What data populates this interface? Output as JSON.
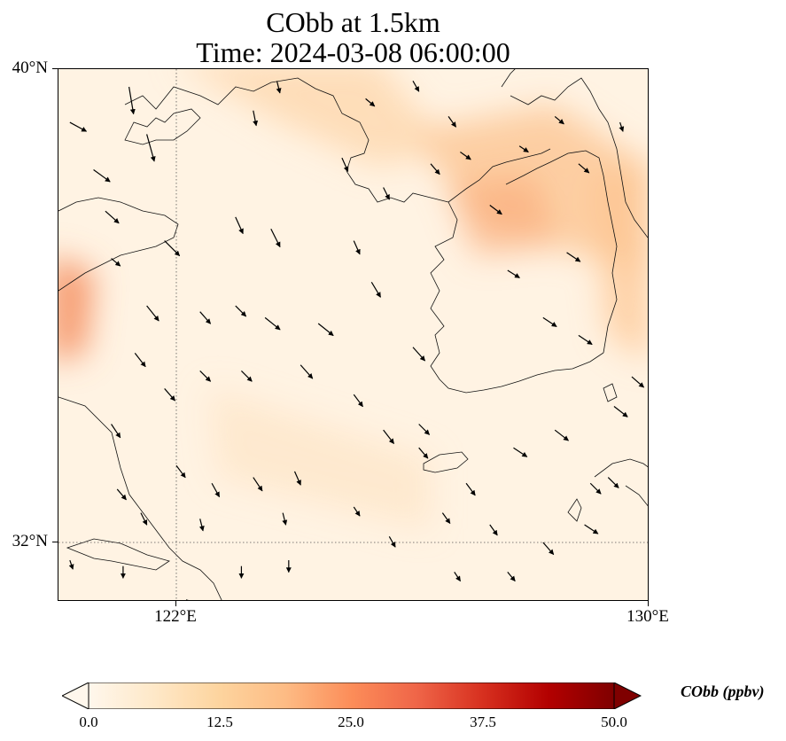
{
  "title": {
    "line1": "CObb at 1.5km",
    "line2": "Time: 2024-03-08 06:00:00"
  },
  "axes": {
    "lat_labels": [
      "40°N",
      "32°N"
    ],
    "lon_labels": [
      "122°E",
      "130°E"
    ],
    "extent": {
      "lon_min": 120,
      "lon_max": 130,
      "lat_min": 31,
      "lat_max": 40
    },
    "gridlines": {
      "lon": [
        122,
        130
      ],
      "lat": [
        32,
        40
      ],
      "style": "dotted"
    }
  },
  "colorbar": {
    "label": "CObb (ppbv)",
    "ticks": [
      "0.0",
      "12.5",
      "25.0",
      "37.5",
      "50.0"
    ],
    "min": 0,
    "max": 50,
    "colormap": "OrRd",
    "stops": [
      "#fff7ec",
      "#fee8c8",
      "#fdd49e",
      "#fdbb84",
      "#fc8d59",
      "#ef6548",
      "#d7301f",
      "#b30000",
      "#7f0000"
    ],
    "extend": "both"
  },
  "field": {
    "background_value": "1-3 ppbv",
    "plumes": [
      {
        "region": "northern Yellow Sea / Liaoning coast",
        "value": 10
      },
      {
        "region": "northern Korean Peninsula band",
        "value": 12
      },
      {
        "region": "western edge near Shandong",
        "value": 22
      },
      {
        "region": "eastern edge near Sea of Japan",
        "value": 8
      }
    ]
  },
  "wind": {
    "description": "wind vectors, predominantly north-westerly",
    "arrows": [
      {
        "lon": 120.2,
        "lat": 39.1,
        "u": 0.55,
        "v": -0.3
      },
      {
        "lon": 120.6,
        "lat": 38.3,
        "u": 0.55,
        "v": -0.4
      },
      {
        "lon": 120.8,
        "lat": 37.6,
        "u": 0.45,
        "v": -0.4
      },
      {
        "lon": 120.9,
        "lat": 36.8,
        "u": 0.3,
        "v": -0.25
      },
      {
        "lon": 121.2,
        "lat": 39.7,
        "u": 0.15,
        "v": -0.9
      },
      {
        "lon": 121.5,
        "lat": 38.9,
        "u": 0.25,
        "v": -0.9
      },
      {
        "lon": 121.8,
        "lat": 37.1,
        "u": 0.5,
        "v": -0.5
      },
      {
        "lon": 121.5,
        "lat": 36.0,
        "u": 0.4,
        "v": -0.5
      },
      {
        "lon": 121.3,
        "lat": 35.2,
        "u": 0.35,
        "v": -0.45
      },
      {
        "lon": 121.8,
        "lat": 34.6,
        "u": 0.35,
        "v": -0.4
      },
      {
        "lon": 120.9,
        "lat": 34.0,
        "u": 0.3,
        "v": -0.45
      },
      {
        "lon": 122.0,
        "lat": 33.3,
        "u": 0.3,
        "v": -0.4
      },
      {
        "lon": 121.0,
        "lat": 32.9,
        "u": 0.3,
        "v": -0.35
      },
      {
        "lon": 121.4,
        "lat": 32.5,
        "u": 0.2,
        "v": -0.4
      },
      {
        "lon": 120.2,
        "lat": 31.7,
        "u": 0.1,
        "v": -0.3
      },
      {
        "lon": 121.1,
        "lat": 31.6,
        "u": 0.0,
        "v": -0.4
      },
      {
        "lon": 122.2,
        "lat": 31.0,
        "u": 0.1,
        "v": -0.4
      },
      {
        "lon": 122.4,
        "lat": 32.4,
        "u": 0.1,
        "v": -0.4
      },
      {
        "lon": 122.6,
        "lat": 33.0,
        "u": 0.25,
        "v": -0.45
      },
      {
        "lon": 123.3,
        "lat": 33.1,
        "u": 0.3,
        "v": -0.45
      },
      {
        "lon": 124.0,
        "lat": 33.2,
        "u": 0.2,
        "v": -0.45
      },
      {
        "lon": 123.1,
        "lat": 31.6,
        "u": 0.0,
        "v": -0.4
      },
      {
        "lon": 123.9,
        "lat": 31.7,
        "u": 0.0,
        "v": -0.4
      },
      {
        "lon": 123.8,
        "lat": 32.5,
        "u": 0.1,
        "v": -0.4
      },
      {
        "lon": 122.4,
        "lat": 34.9,
        "u": 0.35,
        "v": -0.35
      },
      {
        "lon": 123.1,
        "lat": 34.9,
        "u": 0.35,
        "v": -0.35
      },
      {
        "lon": 124.1,
        "lat": 35.0,
        "u": 0.4,
        "v": -0.45
      },
      {
        "lon": 122.4,
        "lat": 35.9,
        "u": 0.35,
        "v": -0.4
      },
      {
        "lon": 123.0,
        "lat": 36.0,
        "u": 0.35,
        "v": -0.35
      },
      {
        "lon": 123.5,
        "lat": 35.8,
        "u": 0.5,
        "v": -0.4
      },
      {
        "lon": 124.4,
        "lat": 35.7,
        "u": 0.5,
        "v": -0.4
      },
      {
        "lon": 123.0,
        "lat": 37.5,
        "u": 0.25,
        "v": -0.55
      },
      {
        "lon": 123.6,
        "lat": 37.3,
        "u": 0.3,
        "v": -0.6
      },
      {
        "lon": 123.3,
        "lat": 39.3,
        "u": 0.1,
        "v": -0.5
      },
      {
        "lon": 123.7,
        "lat": 39.8,
        "u": 0.1,
        "v": -0.4
      },
      {
        "lon": 124.8,
        "lat": 38.5,
        "u": 0.2,
        "v": -0.45
      },
      {
        "lon": 125.0,
        "lat": 37.1,
        "u": 0.2,
        "v": -0.45
      },
      {
        "lon": 125.5,
        "lat": 38.0,
        "u": 0.2,
        "v": -0.4
      },
      {
        "lon": 125.3,
        "lat": 36.4,
        "u": 0.3,
        "v": -0.5
      },
      {
        "lon": 126.0,
        "lat": 35.3,
        "u": 0.4,
        "v": -0.45
      },
      {
        "lon": 125.0,
        "lat": 34.5,
        "u": 0.3,
        "v": -0.4
      },
      {
        "lon": 125.5,
        "lat": 33.9,
        "u": 0.35,
        "v": -0.45
      },
      {
        "lon": 126.1,
        "lat": 34.0,
        "u": 0.35,
        "v": -0.35
      },
      {
        "lon": 125.0,
        "lat": 32.6,
        "u": 0.2,
        "v": -0.3
      },
      {
        "lon": 125.6,
        "lat": 32.1,
        "u": 0.2,
        "v": -0.35
      },
      {
        "lon": 126.1,
        "lat": 33.6,
        "u": 0.3,
        "v": -0.35
      },
      {
        "lon": 126.9,
        "lat": 33.0,
        "u": 0.3,
        "v": -0.4
      },
      {
        "lon": 127.3,
        "lat": 32.3,
        "u": 0.25,
        "v": -0.35
      },
      {
        "lon": 126.5,
        "lat": 32.5,
        "u": 0.25,
        "v": -0.35
      },
      {
        "lon": 127.6,
        "lat": 31.5,
        "u": 0.25,
        "v": -0.3
      },
      {
        "lon": 126.7,
        "lat": 31.5,
        "u": 0.2,
        "v": -0.3
      },
      {
        "lon": 128.2,
        "lat": 32.0,
        "u": 0.35,
        "v": -0.4
      },
      {
        "lon": 128.9,
        "lat": 32.3,
        "u": 0.45,
        "v": -0.3
      },
      {
        "lon": 129.3,
        "lat": 33.1,
        "u": 0.35,
        "v": -0.35
      },
      {
        "lon": 127.7,
        "lat": 33.6,
        "u": 0.45,
        "v": -0.3
      },
      {
        "lon": 128.4,
        "lat": 33.9,
        "u": 0.45,
        "v": -0.35
      },
      {
        "lon": 129.4,
        "lat": 34.3,
        "u": 0.45,
        "v": -0.35
      },
      {
        "lon": 129.7,
        "lat": 34.8,
        "u": 0.4,
        "v": -0.35
      },
      {
        "lon": 128.8,
        "lat": 35.5,
        "u": 0.45,
        "v": -0.3
      },
      {
        "lon": 128.2,
        "lat": 35.8,
        "u": 0.45,
        "v": -0.3
      },
      {
        "lon": 127.6,
        "lat": 36.6,
        "u": 0.4,
        "v": -0.25
      },
      {
        "lon": 128.6,
        "lat": 36.9,
        "u": 0.45,
        "v": -0.3
      },
      {
        "lon": 127.3,
        "lat": 37.7,
        "u": 0.4,
        "v": -0.3
      },
      {
        "lon": 126.8,
        "lat": 38.6,
        "u": 0.35,
        "v": -0.25
      },
      {
        "lon": 126.3,
        "lat": 38.4,
        "u": 0.3,
        "v": -0.35
      },
      {
        "lon": 128.8,
        "lat": 38.4,
        "u": 0.35,
        "v": -0.3
      },
      {
        "lon": 127.8,
        "lat": 38.7,
        "u": 0.3,
        "v": -0.2
      },
      {
        "lon": 126.6,
        "lat": 39.2,
        "u": 0.25,
        "v": -0.35
      },
      {
        "lon": 128.4,
        "lat": 39.2,
        "u": 0.3,
        "v": -0.25
      },
      {
        "lon": 129.5,
        "lat": 39.1,
        "u": 0.1,
        "v": -0.3
      },
      {
        "lon": 126.0,
        "lat": 39.8,
        "u": 0.2,
        "v": -0.35
      },
      {
        "lon": 125.2,
        "lat": 39.5,
        "u": 0.3,
        "v": -0.25
      },
      {
        "lon": 129.0,
        "lat": 33.0,
        "u": 0.35,
        "v": -0.35
      }
    ]
  }
}
